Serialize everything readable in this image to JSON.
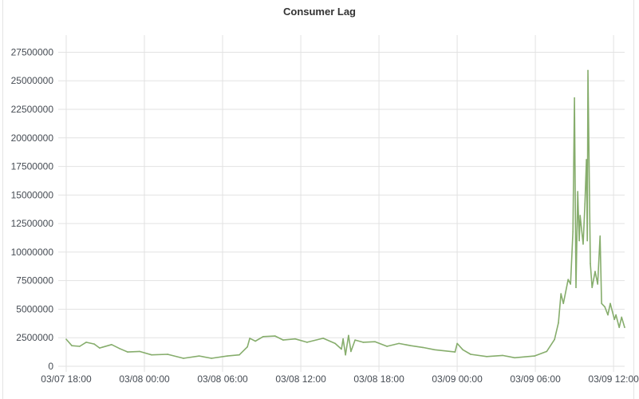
{
  "chart_data": {
    "type": "line",
    "title": "Consumer Lag",
    "xlabel": "",
    "ylabel": "",
    "x_range": [
      "03/07 18:00",
      "03/09 12:51"
    ],
    "ylim": [
      0,
      29000000
    ],
    "grid": true,
    "x_ticks": [
      "03/07 18:00",
      "03/08 00:00",
      "03/08 06:00",
      "03/08 12:00",
      "03/08 18:00",
      "03/09 00:00",
      "03/09 06:00",
      "03/09 12:00"
    ],
    "y_ticks": [
      0,
      2500000,
      5000000,
      7500000,
      10000000,
      12500000,
      15000000,
      17500000,
      20000000,
      22500000,
      25000000,
      27500000
    ],
    "colors": {
      "line": "#86ad6c",
      "grid": "#e2e2e2"
    },
    "series": [
      {
        "points": [
          [
            "03/07 18:00",
            2370000
          ],
          [
            "03/07 18:26",
            1800000
          ],
          [
            "03/07 19:02",
            1750000
          ],
          [
            "03/07 19:32",
            2100000
          ],
          [
            "03/07 20:09",
            1950000
          ],
          [
            "03/07 20:34",
            1600000
          ],
          [
            "03/07 21:29",
            1900000
          ],
          [
            "03/07 22:06",
            1550000
          ],
          [
            "03/07 22:43",
            1250000
          ],
          [
            "03/07 23:38",
            1300000
          ],
          [
            "03/08 00:33",
            1000000
          ],
          [
            "03/08 01:47",
            1050000
          ],
          [
            "03/08 03:00",
            700000
          ],
          [
            "03/08 04:13",
            900000
          ],
          [
            "03/08 05:09",
            700000
          ],
          [
            "03/08 06:22",
            900000
          ],
          [
            "03/08 07:17",
            1000000
          ],
          [
            "03/08 07:54",
            1700000
          ],
          [
            "03/08 08:05",
            2450000
          ],
          [
            "03/08 08:31",
            2200000
          ],
          [
            "03/08 09:07",
            2600000
          ],
          [
            "03/08 10:02",
            2650000
          ],
          [
            "03/08 10:39",
            2300000
          ],
          [
            "03/08 11:34",
            2400000
          ],
          [
            "03/08 12:29",
            2100000
          ],
          [
            "03/08 13:43",
            2450000
          ],
          [
            "03/08 14:38",
            2000000
          ],
          [
            "03/08 15:07",
            1500000
          ],
          [
            "03/08 15:15",
            2400000
          ],
          [
            "03/08 15:26",
            1000000
          ],
          [
            "03/08 15:40",
            2700000
          ],
          [
            "03/08 15:51",
            1300000
          ],
          [
            "03/08 16:10",
            2300000
          ],
          [
            "03/08 16:47",
            2100000
          ],
          [
            "03/08 17:42",
            2150000
          ],
          [
            "03/08 18:37",
            1750000
          ],
          [
            "03/08 19:32",
            2000000
          ],
          [
            "03/08 20:27",
            1800000
          ],
          [
            "03/08 21:22",
            1650000
          ],
          [
            "03/08 22:17",
            1450000
          ],
          [
            "03/08 23:50",
            1250000
          ],
          [
            "03/09 00:00",
            2000000
          ],
          [
            "03/09 00:26",
            1450000
          ],
          [
            "03/09 01:02",
            1050000
          ],
          [
            "03/09 02:16",
            850000
          ],
          [
            "03/09 03:29",
            950000
          ],
          [
            "03/09 04:25",
            750000
          ],
          [
            "03/09 05:56",
            900000
          ],
          [
            "03/09 06:52",
            1300000
          ],
          [
            "03/09 07:28",
            2350000
          ],
          [
            "03/09 07:46",
            3800000
          ],
          [
            "03/09 07:58",
            6350000
          ],
          [
            "03/09 08:09",
            5500000
          ],
          [
            "03/09 08:31",
            7600000
          ],
          [
            "03/09 08:42",
            7200000
          ],
          [
            "03/09 08:53",
            11800000
          ],
          [
            "03/09 09:00",
            23500000
          ],
          [
            "03/09 09:07",
            6900000
          ],
          [
            "03/09 09:15",
            15300000
          ],
          [
            "03/09 09:22",
            11000000
          ],
          [
            "03/09 09:26",
            13200000
          ],
          [
            "03/09 09:40",
            10700000
          ],
          [
            "03/09 09:48",
            14200000
          ],
          [
            "03/09 09:55",
            18100000
          ],
          [
            "03/09 09:59",
            11000000
          ],
          [
            "03/09 10:02",
            25900000
          ],
          [
            "03/09 10:13",
            9000000
          ],
          [
            "03/09 10:21",
            6900000
          ],
          [
            "03/09 10:35",
            8300000
          ],
          [
            "03/09 10:47",
            7200000
          ],
          [
            "03/09 10:58",
            11400000
          ],
          [
            "03/09 11:05",
            5500000
          ],
          [
            "03/09 11:20",
            5200000
          ],
          [
            "03/09 11:34",
            4500000
          ],
          [
            "03/09 11:45",
            5500000
          ],
          [
            "03/09 12:04",
            4100000
          ],
          [
            "03/09 12:11",
            4500000
          ],
          [
            "03/09 12:26",
            3400000
          ],
          [
            "03/09 12:37",
            4300000
          ],
          [
            "03/09 12:51",
            3400000
          ]
        ]
      }
    ]
  }
}
